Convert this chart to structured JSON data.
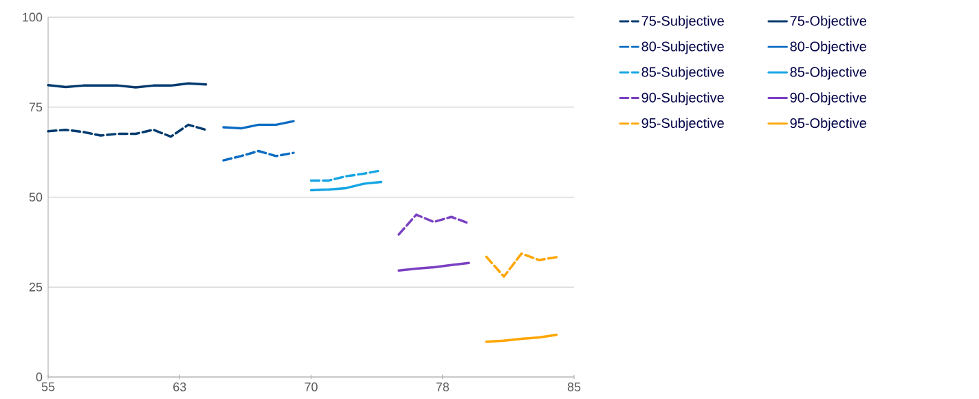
{
  "chart_data": {
    "type": "line",
    "xlim": [
      55,
      85
    ],
    "xticks": [
      55,
      {
        "value": 62.5,
        "label": "63"
      },
      70,
      {
        "value": 77.5,
        "label": "78"
      },
      85
    ],
    "ylim": [
      0,
      100
    ],
    "yticks": [
      0,
      25,
      50,
      75,
      100
    ],
    "grid": "y",
    "legend": "right",
    "series": [
      {
        "name": "75-Subjective",
        "color": "#003a6e",
        "line_style": "dashed",
        "x": [
          55,
          56,
          57,
          58,
          59,
          60,
          61,
          62,
          63,
          64
        ],
        "values": [
          68.3,
          68.7,
          68.1,
          67.1,
          67.6,
          67.6,
          68.7,
          66.8,
          70.1,
          68.7
        ]
      },
      {
        "name": "75-Objective",
        "color": "#003a6e",
        "line_style": "solid",
        "x": [
          55,
          56,
          57,
          58,
          59,
          60,
          61,
          62,
          63,
          64
        ],
        "values": [
          81.1,
          80.6,
          81.0,
          81.0,
          81.0,
          80.5,
          81.0,
          81.0,
          81.6,
          81.3
        ]
      },
      {
        "name": "80-Subjective",
        "color": "#0a6cc2",
        "line_style": "dashed",
        "x": [
          65,
          66,
          67,
          68,
          69
        ],
        "values": [
          60.2,
          61.4,
          62.8,
          61.4,
          62.3
        ]
      },
      {
        "name": "80-Objective",
        "color": "#0a6cc2",
        "line_style": "solid",
        "x": [
          65,
          66,
          67,
          68,
          69
        ],
        "values": [
          69.4,
          69.1,
          70.1,
          70.1,
          71.1
        ]
      },
      {
        "name": "85-Subjective",
        "color": "#14a5e3",
        "line_style": "dashed",
        "x": [
          70,
          71,
          72,
          73,
          74
        ],
        "values": [
          54.6,
          54.6,
          55.8,
          56.5,
          57.4
        ]
      },
      {
        "name": "85-Objective",
        "color": "#14a5e3",
        "line_style": "solid",
        "x": [
          70,
          71,
          72,
          73,
          74
        ],
        "values": [
          51.9,
          52.1,
          52.5,
          53.7,
          54.2
        ]
      },
      {
        "name": "90-Subjective",
        "color": "#7a40c2",
        "line_style": "dashed",
        "x": [
          75,
          76,
          77,
          78,
          79
        ],
        "values": [
          39.6,
          45.1,
          43.1,
          44.5,
          42.7
        ]
      },
      {
        "name": "90-Objective",
        "color": "#7a40c2",
        "line_style": "solid",
        "x": [
          75,
          76,
          77,
          78,
          79
        ],
        "values": [
          29.6,
          30.1,
          30.5,
          31.1,
          31.7
        ]
      },
      {
        "name": "95-Subjective",
        "color": "#ffa500",
        "line_style": "dashed",
        "x": [
          80,
          81,
          82,
          83,
          84
        ],
        "values": [
          33.4,
          27.9,
          34.3,
          32.5,
          33.3
        ]
      },
      {
        "name": "95-Objective",
        "color": "#ffa500",
        "line_style": "solid",
        "x": [
          80,
          81,
          82,
          83,
          84
        ],
        "values": [
          9.8,
          10.1,
          10.6,
          11.0,
          11.7
        ]
      }
    ]
  }
}
